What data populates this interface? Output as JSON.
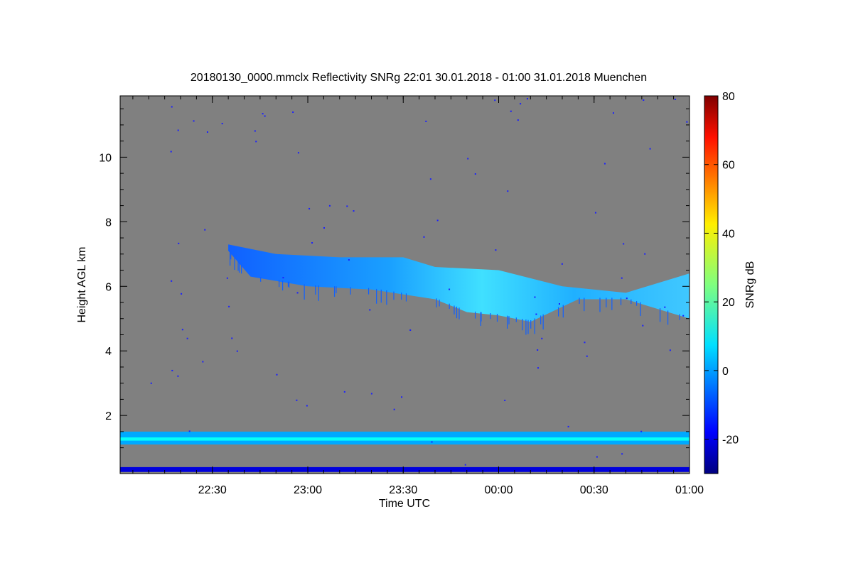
{
  "chart_data": {
    "type": "heatmap",
    "title": "20180130_0000.mmclx Reflectivity SNRg   22:01 30.01.2018 - 01:00 31.01.2018 Muenchen",
    "xlabel": "Time UTC",
    "ylabel": "Height AGL km",
    "xlim_minutes_utc": [
      1321,
      1500
    ],
    "ylim": [
      0.2,
      11.9
    ],
    "x_ticks": [
      {
        "minute": 1350,
        "label": "22:30"
      },
      {
        "minute": 1380,
        "label": "23:00"
      },
      {
        "minute": 1410,
        "label": "23:30"
      },
      {
        "minute": 1440,
        "label": "00:00"
      },
      {
        "minute": 1470,
        "label": "00:30"
      },
      {
        "minute": 1500,
        "label": "01:00"
      }
    ],
    "y_ticks": [
      2,
      4,
      6,
      8,
      10
    ],
    "background_color": "#808080",
    "colorbar": {
      "label": "SNRg dB",
      "range": [
        -30,
        80
      ],
      "ticks": [
        -20,
        0,
        20,
        40,
        60,
        80
      ],
      "colormap": "jet"
    },
    "features": [
      {
        "name": "upper cloud layer",
        "time_range_minutes": [
          1355,
          1500
        ],
        "top_km": [
          [
            1355,
            7.3
          ],
          [
            1370,
            7.0
          ],
          [
            1390,
            6.9
          ],
          [
            1410,
            6.9
          ],
          [
            1420,
            6.6
          ],
          [
            1440,
            6.5
          ],
          [
            1460,
            6.0
          ],
          [
            1480,
            5.8
          ],
          [
            1500,
            6.4
          ]
        ],
        "base_km": [
          [
            1355,
            7.1
          ],
          [
            1362,
            6.3
          ],
          [
            1380,
            6.0
          ],
          [
            1400,
            5.9
          ],
          [
            1420,
            5.6
          ],
          [
            1430,
            5.2
          ],
          [
            1440,
            5.1
          ],
          [
            1450,
            4.9
          ],
          [
            1465,
            5.6
          ],
          [
            1480,
            5.6
          ],
          [
            1500,
            5.0
          ]
        ],
        "max_snr_db": 12
      },
      {
        "name": "boundary layer band",
        "time_range_minutes": [
          1321,
          1500
        ],
        "base_km": 1.1,
        "top_km": 1.5,
        "snr_db": 2
      },
      {
        "name": "near-surface band",
        "time_range_minutes": [
          1321,
          1500
        ],
        "base_km": 0.25,
        "top_km": 0.4,
        "snr_db": -20
      }
    ]
  }
}
